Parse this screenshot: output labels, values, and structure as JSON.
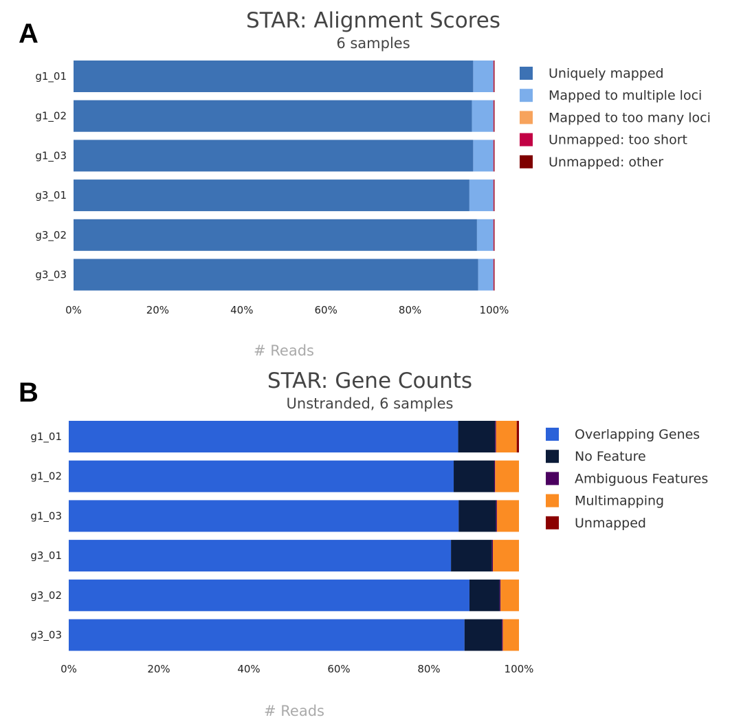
{
  "chart_data": [
    {
      "panel_letter": "A",
      "type": "bar",
      "orientation": "horizontal",
      "stacked": true,
      "title": "STAR: Alignment Scores",
      "subtitle": "6 samples",
      "xlabel": "# Reads",
      "ylabel": "",
      "categories": [
        "g1_01",
        "g1_02",
        "g1_03",
        "g3_01",
        "g3_02",
        "g3_03"
      ],
      "xticks": [
        "0%",
        "20%",
        "40%",
        "60%",
        "80%",
        "100%"
      ],
      "xlim": [
        0,
        100
      ],
      "grid": false,
      "legend_position": "right",
      "series": [
        {
          "name": "Uniquely mapped",
          "color": "#3d72b4",
          "values": [
            95.0,
            94.7,
            95.0,
            94.1,
            95.9,
            96.2
          ]
        },
        {
          "name": "Mapped to multiple loci",
          "color": "#7caeeb",
          "values": [
            4.8,
            5.1,
            4.8,
            5.7,
            3.9,
            3.6
          ]
        },
        {
          "name": "Mapped to too many loci",
          "color": "#f7a35c",
          "values": [
            0.0,
            0.0,
            0.0,
            0.0,
            0.0,
            0.0
          ]
        },
        {
          "name": "Unmapped: too short",
          "color": "#c20145",
          "values": [
            0.15,
            0.15,
            0.15,
            0.15,
            0.15,
            0.15
          ]
        },
        {
          "name": "Unmapped: other",
          "color": "#7f0000",
          "values": [
            0.05,
            0.05,
            0.05,
            0.05,
            0.05,
            0.05
          ]
        }
      ]
    },
    {
      "panel_letter": "B",
      "type": "bar",
      "orientation": "horizontal",
      "stacked": true,
      "title": "STAR: Gene Counts",
      "subtitle": "Unstranded, 6 samples",
      "xlabel": "# Reads",
      "ylabel": "",
      "categories": [
        "g1_01",
        "g1_02",
        "g1_03",
        "g3_01",
        "g3_02",
        "g3_03"
      ],
      "xticks": [
        "0%",
        "20%",
        "40%",
        "60%",
        "80%",
        "100%"
      ],
      "xlim": [
        0,
        100
      ],
      "grid": false,
      "legend_position": "right",
      "series": [
        {
          "name": "Overlapping Genes",
          "color": "#2b62d9",
          "values": [
            86.5,
            85.5,
            86.6,
            84.9,
            89.0,
            87.9
          ]
        },
        {
          "name": "No Feature",
          "color": "#0b1b38",
          "values": [
            8.2,
            9.0,
            8.3,
            9.1,
            6.7,
            8.3
          ]
        },
        {
          "name": "Ambiguous Features",
          "color": "#4b0060",
          "values": [
            0.2,
            0.2,
            0.2,
            0.2,
            0.2,
            0.2
          ]
        },
        {
          "name": "Multimapping",
          "color": "#fb8c23",
          "values": [
            4.6,
            5.3,
            4.9,
            5.8,
            4.1,
            3.6
          ]
        },
        {
          "name": "Unmapped",
          "color": "#8b0000",
          "values": [
            0.5,
            0.0,
            0.0,
            0.0,
            0.0,
            0.0
          ]
        }
      ]
    }
  ]
}
